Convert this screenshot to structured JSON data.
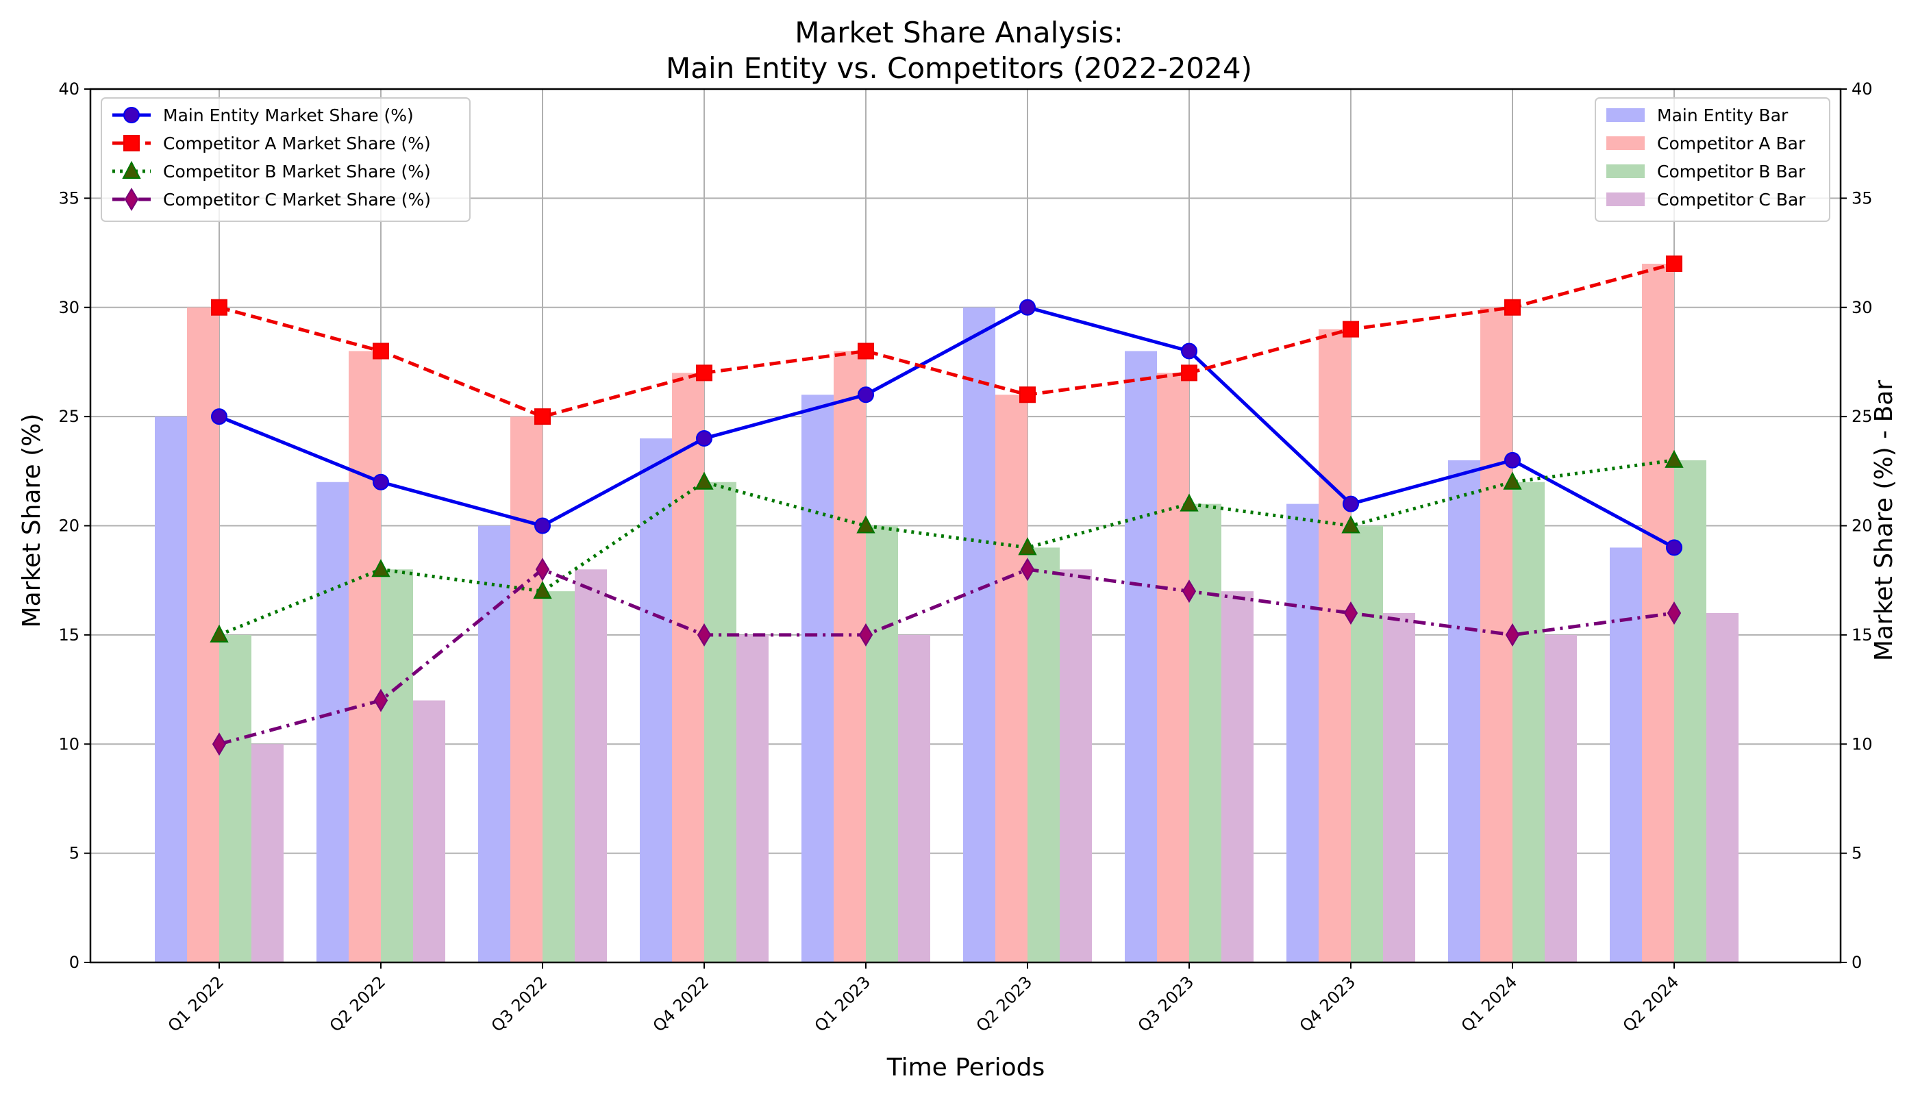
{
  "chart_data": {
    "type": "bar",
    "title_line1": "Market Share Analysis:",
    "title_line2": "Main Entity vs. Competitors (2022-2024)",
    "xlabel": "Time Periods",
    "ylabel": "Market Share (%)",
    "ylabel_right": "Market Share (%) - Bar",
    "ylim": [
      0,
      40
    ],
    "yticks": [
      0,
      5,
      10,
      15,
      20,
      25,
      30,
      35,
      40
    ],
    "grid": true,
    "categories": [
      "Q1 2022",
      "Q2 2022",
      "Q3 2022",
      "Q4 2022",
      "Q1 2023",
      "Q2 2023",
      "Q3 2023",
      "Q4 2023",
      "Q1 2024",
      "Q2 2024"
    ],
    "line_series": [
      {
        "name": "Main Entity Market Share (%)",
        "color": "#0000ee",
        "marker": "circle",
        "dash": "solid",
        "marker_fill": "#3f00bf",
        "values": [
          25,
          22,
          20,
          24,
          26,
          30,
          28,
          21,
          23,
          19
        ]
      },
      {
        "name": "Competitor A Market Share (%)",
        "color": "#ee0000",
        "marker": "square",
        "dash": "dashed",
        "marker_fill": "#ff0000",
        "values": [
          30,
          28,
          25,
          27,
          28,
          26,
          27,
          29,
          30,
          32
        ]
      },
      {
        "name": "Competitor B Market Share (%)",
        "color": "#007700",
        "marker": "triangle",
        "dash": "dotted",
        "marker_fill": "#3f5a00",
        "values": [
          15,
          18,
          17,
          22,
          20,
          19,
          21,
          20,
          22,
          23
        ]
      },
      {
        "name": "Competitor C Market Share (%)",
        "color": "#770077",
        "marker": "diamond",
        "dash": "dashdot",
        "marker_fill": "#a0006a",
        "values": [
          10,
          12,
          18,
          15,
          15,
          18,
          17,
          16,
          15,
          16
        ]
      }
    ],
    "bar_series": [
      {
        "name": "Main Entity Bar",
        "color": "#b3b3fb",
        "values": [
          25,
          22,
          20,
          24,
          26,
          30,
          28,
          21,
          23,
          19
        ]
      },
      {
        "name": "Competitor A Bar",
        "color": "#fdb3b3",
        "values": [
          30,
          28,
          25,
          27,
          28,
          26,
          27,
          29,
          30,
          32
        ]
      },
      {
        "name": "Competitor B Bar",
        "color": "#b3d9b3",
        "values": [
          15,
          18,
          17,
          22,
          20,
          19,
          21,
          20,
          22,
          23
        ]
      },
      {
        "name": "Competitor C Bar",
        "color": "#d9b3d9",
        "values": [
          10,
          12,
          18,
          15,
          15,
          18,
          17,
          16,
          15,
          16
        ]
      }
    ],
    "legend_left_placement": "upper-left",
    "legend_right_placement": "upper-right"
  }
}
